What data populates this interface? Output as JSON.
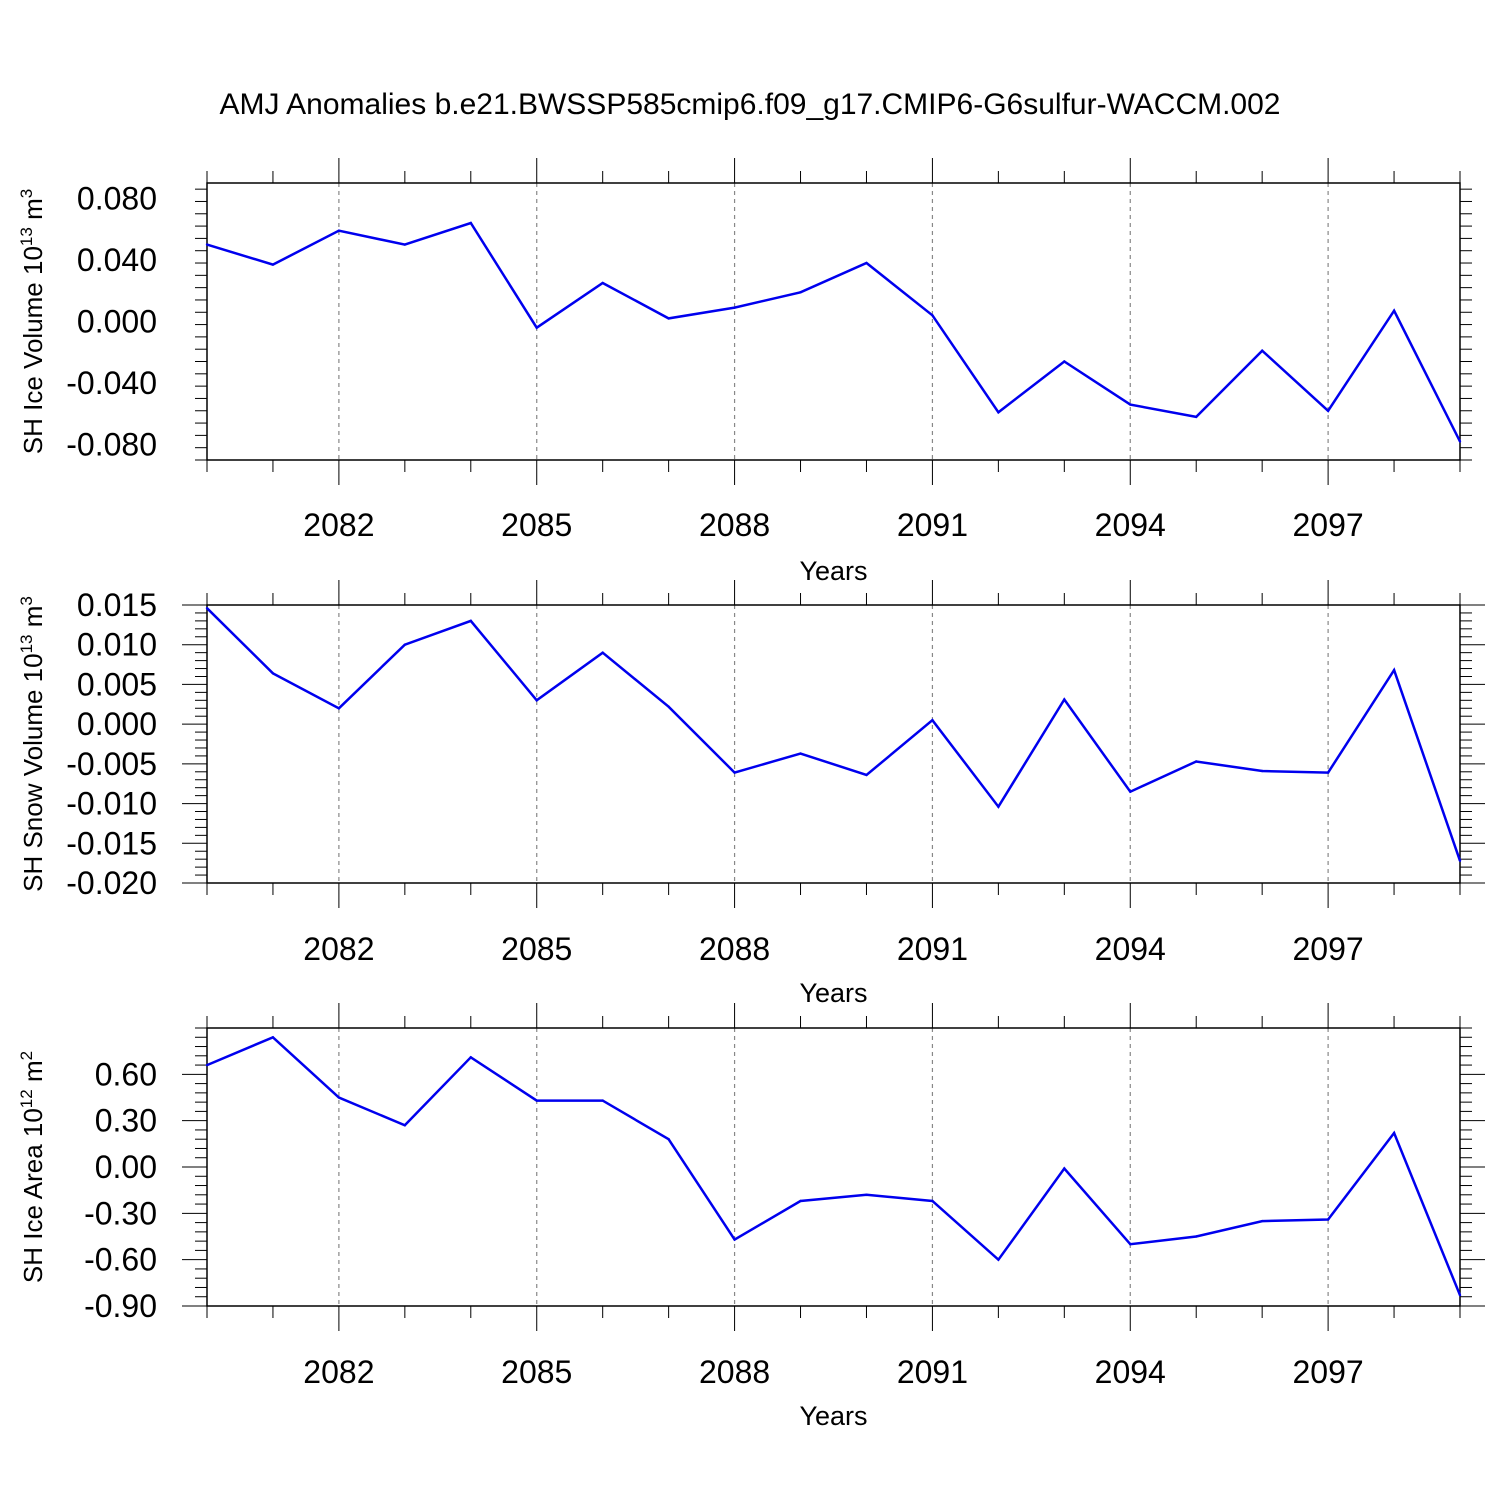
{
  "title": "AMJ Anomalies b.e21.BWSSP585cmip6.f09_g17.CMIP6-G6sulfur-WACCM.002",
  "chart_data": [
    {
      "type": "line",
      "ylabel": "SH Ice Volume 10",
      "ylabel_exp": "13",
      "ylabel_unit": " m",
      "ylabel_unit_exp": "3",
      "xlabel": "Years",
      "xlim": [
        2080,
        2099
      ],
      "ylim": [
        -0.09,
        0.09
      ],
      "yticks": [
        0.08,
        0.04,
        0.0,
        -0.04,
        -0.08
      ],
      "ytick_labels": [
        "0.080",
        "0.040",
        "0.000",
        "-0.040",
        "-0.080"
      ],
      "xticks": [
        2082,
        2085,
        2088,
        2091,
        2094,
        2097
      ],
      "xtick_labels": [
        "2082",
        "2085",
        "2088",
        "2091",
        "2094",
        "2097"
      ],
      "grid": "vertical-dashed",
      "color": "#0000ee",
      "x": [
        2080,
        2081,
        2082,
        2083,
        2084,
        2085,
        2086,
        2087,
        2088,
        2089,
        2090,
        2091,
        2092,
        2093,
        2094,
        2095,
        2096,
        2097,
        2098,
        2099
      ],
      "values": [
        0.05,
        0.037,
        0.059,
        0.05,
        0.064,
        -0.004,
        0.025,
        0.002,
        0.009,
        0.019,
        0.038,
        0.004,
        -0.059,
        -0.026,
        -0.054,
        -0.062,
        -0.019,
        -0.058,
        0.007,
        -0.078
      ]
    },
    {
      "type": "line",
      "ylabel": "SH Snow Volume 10",
      "ylabel_exp": "13",
      "ylabel_unit": " m",
      "ylabel_unit_exp": "3",
      "xlabel": "Years",
      "xlim": [
        2080,
        2099
      ],
      "ylim": [
        -0.02,
        0.015
      ],
      "yticks": [
        0.015,
        0.01,
        0.005,
        0.0,
        -0.005,
        -0.01,
        -0.015,
        -0.02
      ],
      "ytick_labels": [
        "0.015",
        "0.010",
        "0.005",
        "0.000",
        "-0.005",
        "-0.010",
        "-0.015",
        "-0.020"
      ],
      "xticks": [
        2082,
        2085,
        2088,
        2091,
        2094,
        2097
      ],
      "xtick_labels": [
        "2082",
        "2085",
        "2088",
        "2091",
        "2094",
        "2097"
      ],
      "grid": "vertical-dashed",
      "color": "#0000ee",
      "x": [
        2080,
        2081,
        2082,
        2083,
        2084,
        2085,
        2086,
        2087,
        2088,
        2089,
        2090,
        2091,
        2092,
        2093,
        2094,
        2095,
        2096,
        2097,
        2098,
        2099
      ],
      "values": [
        0.0146,
        0.0064,
        0.002,
        0.01,
        0.013,
        0.003,
        0.009,
        0.0022,
        -0.0061,
        -0.0037,
        -0.0064,
        0.0005,
        -0.0104,
        0.0031,
        -0.0085,
        -0.0047,
        -0.0059,
        -0.0061,
        0.0068,
        -0.0172
      ]
    },
    {
      "type": "line",
      "ylabel": "SH Ice Area 10",
      "ylabel_exp": "12",
      "ylabel_unit": " m",
      "ylabel_unit_exp": "2",
      "xlabel": "Years",
      "xlim": [
        2080,
        2099
      ],
      "ylim": [
        -0.9,
        0.9
      ],
      "yticks": [
        0.6,
        0.3,
        0.0,
        -0.3,
        -0.6,
        -0.9
      ],
      "ytick_labels": [
        "0.60",
        "0.30",
        "0.00",
        "-0.30",
        "-0.60",
        "-0.90"
      ],
      "xticks": [
        2082,
        2085,
        2088,
        2091,
        2094,
        2097
      ],
      "xtick_labels": [
        "2082",
        "2085",
        "2088",
        "2091",
        "2094",
        "2097"
      ],
      "grid": "vertical-dashed",
      "color": "#0000ee",
      "x": [
        2080,
        2081,
        2082,
        2083,
        2084,
        2085,
        2086,
        2087,
        2088,
        2089,
        2090,
        2091,
        2092,
        2093,
        2094,
        2095,
        2096,
        2097,
        2098,
        2099
      ],
      "values": [
        0.66,
        0.84,
        0.45,
        0.27,
        0.71,
        0.43,
        0.43,
        0.18,
        -0.47,
        -0.22,
        -0.18,
        -0.22,
        -0.6,
        -0.01,
        -0.5,
        -0.45,
        -0.35,
        -0.34,
        0.22,
        -0.83
      ]
    }
  ]
}
